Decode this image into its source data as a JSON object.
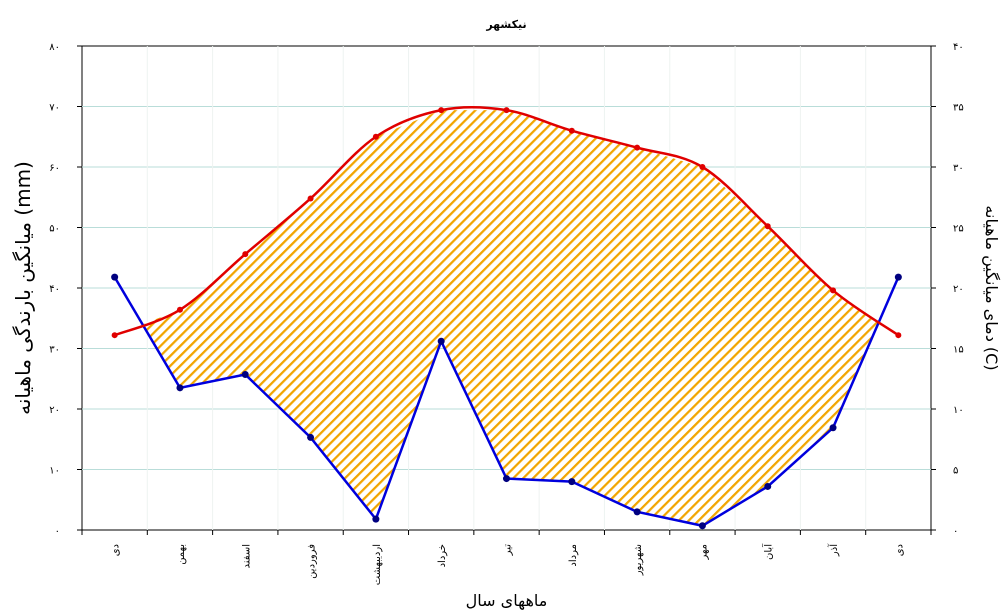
{
  "chart_data": {
    "type": "line",
    "title": "نیکشهر",
    "xlabel": "ماههای سال",
    "ylabel_left": "میانگین بارندگی ماهیانه (mm)",
    "ylabel_right": "دمای میانگین ماهیانه (C)",
    "categories": [
      "دی",
      "بهمن",
      "اسفند",
      "فروردین",
      "اردیبهشت",
      "خرداد",
      "تیر",
      "مرداد",
      "شهریور",
      "مهر",
      "آبان",
      "آذر",
      "دی"
    ],
    "y_left": {
      "min": 0,
      "max": 80,
      "ticks": [
        "۰",
        "۱۰",
        "۲۰",
        "۳۰",
        "۴۰",
        "۵۰",
        "۶۰",
        "۷۰",
        "۸۰"
      ]
    },
    "y_right": {
      "min": 0,
      "max": 40,
      "ticks": [
        "۰",
        "۵",
        "۱۰",
        "۱۵",
        "۲۰",
        "۲۵",
        "۳۰",
        "۳۵",
        "۴۰"
      ]
    },
    "series": [
      {
        "axis": "left",
        "color": "#0000dd",
        "values": [
          41.8,
          23.5,
          25.7,
          15.3,
          1.8,
          31.2,
          8.5,
          8.0,
          3.0,
          0.7,
          7.2,
          16.9,
          41.8
        ]
      },
      {
        "axis": "right",
        "color": "#e00000",
        "values": [
          16.1,
          18.2,
          22.8,
          27.4,
          32.5,
          34.7,
          34.7,
          33.0,
          31.6,
          30.0,
          25.1,
          19.8,
          16.1
        ]
      }
    ],
    "fill_between": {
      "color": "#f2a500",
      "pattern": "diagonal-hatch"
    },
    "grid": true
  }
}
